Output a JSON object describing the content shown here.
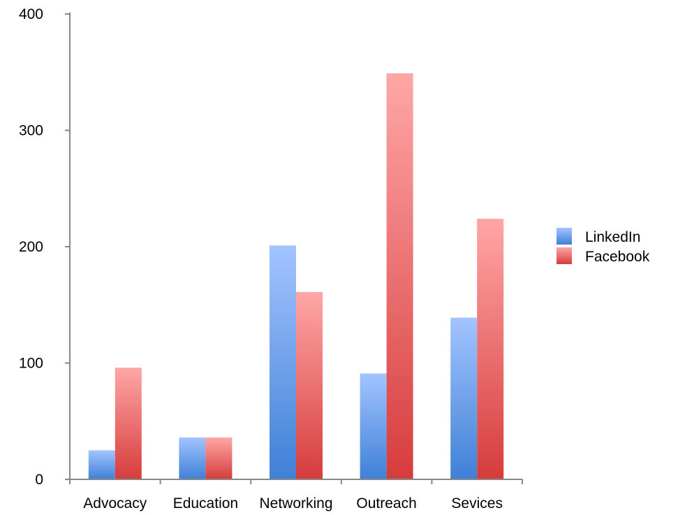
{
  "chart_data": {
    "type": "bar",
    "title": "",
    "xlabel": "",
    "ylabel": "",
    "ylim": [
      0,
      400
    ],
    "yticks": [
      0,
      100,
      200,
      300,
      400
    ],
    "grid": false,
    "legend_position": "right",
    "categories": [
      "Advocacy",
      "Education",
      "Networking",
      "Outreach",
      "Sevices"
    ],
    "series": [
      {
        "name": "LinkedIn",
        "values": [
          25,
          36,
          201,
          91,
          139
        ],
        "color_top": "#a3c4ff",
        "color_bottom": "#3f80d6"
      },
      {
        "name": "Facebook",
        "values": [
          96,
          36,
          161,
          349,
          224
        ],
        "color_top": "#ffa6a6",
        "color_bottom": "#d63c3c"
      }
    ],
    "axis_color": "#888888"
  }
}
